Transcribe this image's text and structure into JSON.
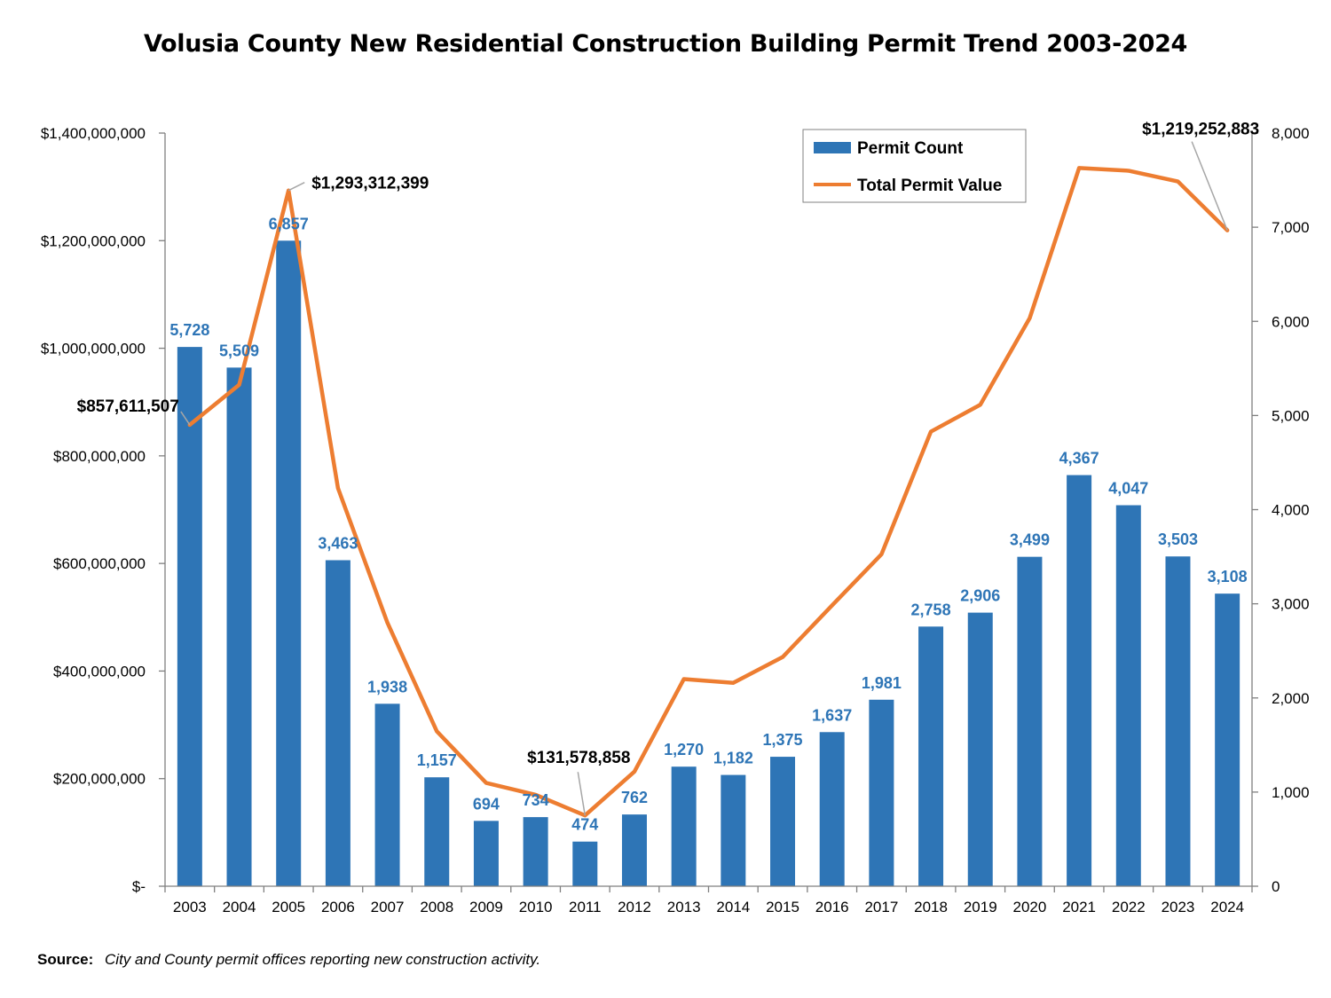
{
  "chart_data": {
    "type": "bar",
    "title": "Volusia County New Residential Construction Building Permit Trend 2003-2024",
    "categories": [
      "2003",
      "2004",
      "2005",
      "2006",
      "2007",
      "2008",
      "2009",
      "2010",
      "2011",
      "2012",
      "2013",
      "2014",
      "2015",
      "2016",
      "2017",
      "2018",
      "2019",
      "2020",
      "2021",
      "2022",
      "2023",
      "2024"
    ],
    "series": [
      {
        "name": "Permit Count",
        "type": "bar",
        "axis": "right",
        "color": "#2E75B6",
        "values": [
          5728,
          5509,
          6857,
          3463,
          1938,
          1157,
          694,
          734,
          474,
          762,
          1270,
          1182,
          1375,
          1637,
          1981,
          2758,
          2906,
          3499,
          4367,
          4047,
          3503,
          3108
        ],
        "labels": [
          "5,728",
          "5,509",
          "6,857",
          "3,463",
          "1,938",
          "1,157",
          "694",
          "734",
          "474",
          "762",
          "1,270",
          "1,182",
          "1,375",
          "1,637",
          "1,981",
          "2,758",
          "2,906",
          "3,499",
          "4,367",
          "4,047",
          "3,503",
          "3,108"
        ]
      },
      {
        "name": "Total Permit Value",
        "type": "line",
        "axis": "left",
        "color": "#ED7D31",
        "values": [
          857611507,
          932000000,
          1293312399,
          740000000,
          490000000,
          288000000,
          192000000,
          170000000,
          131578858,
          213000000,
          385000000,
          378000000,
          426000000,
          522000000,
          617000000,
          845000000,
          895000000,
          1056000000,
          1335000000,
          1330000000,
          1310000000,
          1219252883
        ]
      }
    ],
    "callouts": [
      {
        "index": 0,
        "text": "$857,611,507"
      },
      {
        "index": 2,
        "text": "$1,293,312,399"
      },
      {
        "index": 8,
        "text": "$131,578,858"
      },
      {
        "index": 21,
        "text": "$1,219,252,883"
      }
    ],
    "left_axis": {
      "range": [
        0,
        1400000000
      ],
      "ticks": [
        0,
        200000000,
        400000000,
        600000000,
        800000000,
        1000000000,
        1200000000,
        1400000000
      ],
      "tick_labels": [
        "$-",
        "$200,000,000",
        "$400,000,000",
        "$600,000,000",
        "$800,000,000",
        "$1,000,000,000",
        "$1,200,000,000",
        "$1,400,000,000"
      ]
    },
    "right_axis": {
      "range": [
        0,
        8000
      ],
      "ticks": [
        0,
        1000,
        2000,
        3000,
        4000,
        5000,
        6000,
        7000,
        8000
      ],
      "tick_labels": [
        "0",
        "1,000",
        "2,000",
        "3,000",
        "4,000",
        "5,000",
        "6,000",
        "7,000",
        "8,000"
      ]
    },
    "legend": {
      "placement": "top-right",
      "entries": [
        "Permit Count",
        "Total Permit Value"
      ]
    },
    "grid": false
  },
  "source": {
    "label": "Source:",
    "text": "City and County permit offices reporting new construction activity."
  }
}
